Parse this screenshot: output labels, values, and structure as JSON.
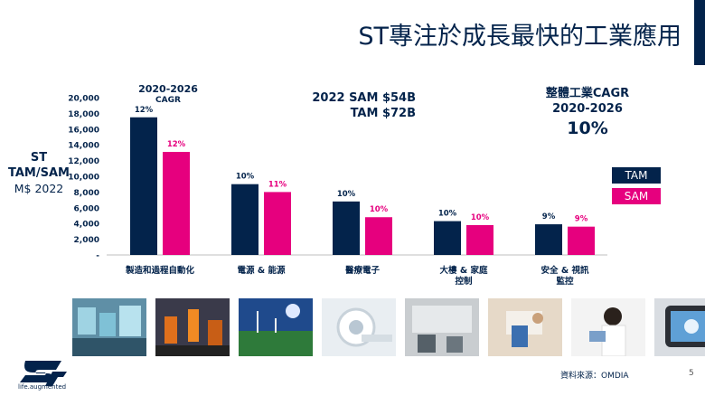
{
  "slide": {
    "title": "ST專注於成長最快的工業應用",
    "y_label": {
      "line1": "ST",
      "line2": "TAM/SAM",
      "line3": "M$ 2022"
    },
    "cagr_header": {
      "years": "2020-2026",
      "label": "CAGR"
    },
    "sam_tam": {
      "line1": "2022 SAM $54B",
      "line2": "TAM $72B"
    },
    "overall": {
      "line1": "整體工業CAGR",
      "line2": "2020-2026",
      "value": "10%"
    },
    "source": "資料來源：OMDIA",
    "page_number": "5",
    "logo_text": "life.augmented"
  },
  "colors": {
    "tam": "#03234b",
    "sam": "#e6007e",
    "text": "#03234b"
  },
  "chart_data": {
    "type": "bar",
    "categories": [
      "製造和過程自動化",
      "電源 & 能源",
      "醫療電子",
      "大樓 & 家庭\n控制",
      "安全 & 視訊\n監控"
    ],
    "series": [
      {
        "name": "TAM",
        "values": [
          17500,
          9000,
          6800,
          4300,
          3900
        ],
        "labels": [
          "12%",
          "10%",
          "10%",
          "10%",
          "9%"
        ]
      },
      {
        "name": "SAM",
        "values": [
          13100,
          8000,
          4800,
          3800,
          3600
        ],
        "labels": [
          "12%",
          "11%",
          "10%",
          "10%",
          "9%"
        ]
      }
    ],
    "y_ticks": [
      "-",
      "2,000",
      "4,000",
      "6,000",
      "8,000",
      "10,000",
      "12,000",
      "14,000",
      "16,000",
      "18,000",
      "20,000"
    ],
    "ylim": [
      0,
      20000
    ],
    "grid": false,
    "legend": "right"
  }
}
